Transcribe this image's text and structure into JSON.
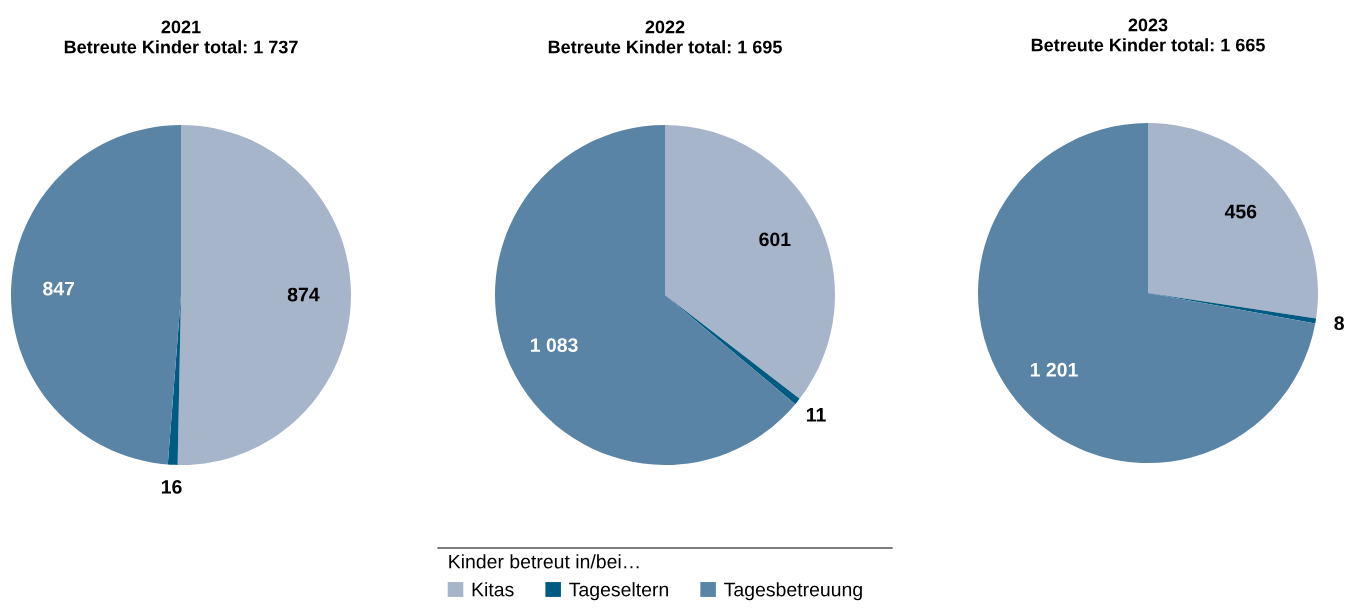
{
  "chart_data": [
    {
      "type": "pie",
      "title": "2021",
      "subtitle": "Betreute Kinder total: 1 737",
      "categories": [
        "Kitas",
        "Tageseltern",
        "Tagesbetreuung"
      ],
      "values": [
        874,
        16,
        847
      ],
      "value_labels": [
        "874",
        "16",
        "847"
      ],
      "colors": [
        "#a7b5cb",
        "#005b82",
        "#5a84a6"
      ],
      "legend": "bottom",
      "legend_title": "Kinder betreut in/bei…"
    },
    {
      "type": "pie",
      "title": "2022",
      "subtitle": "Betreute Kinder total: 1 695",
      "categories": [
        null,
        null,
        null
      ],
      "values": [
        601,
        11,
        1083
      ],
      "value_labels": [
        "601",
        "11",
        "1 083"
      ],
      "colors": [
        "#a7b5cb",
        "#005b82",
        "#5a84a6"
      ],
      "legend": false
    },
    {
      "type": "pie",
      "title": "2023",
      "subtitle": "Betreute Kinder total: 1 665",
      "categories": [
        null,
        null,
        null
      ],
      "values": [
        456,
        8,
        1201
      ],
      "value_labels": [
        "456",
        "8",
        "1 201"
      ],
      "colors": [
        "#a7b5cb",
        "#005b82",
        "#5a84a6"
      ],
      "legend": false
    }
  ]
}
